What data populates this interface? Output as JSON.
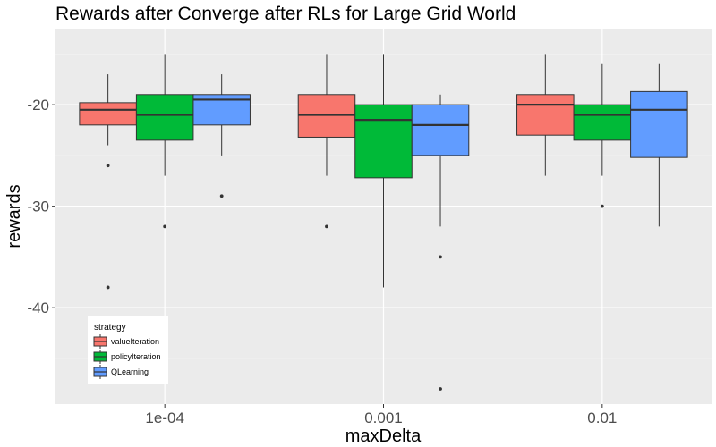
{
  "chart_data": {
    "type": "boxplot",
    "title": "Rewards after Converge after RLs for Large Grid World",
    "xlabel": "maxDelta",
    "ylabel": "rewards",
    "categories": [
      "1e-04",
      "0.001",
      "0.01"
    ],
    "ylim": [
      -49.5,
      -12.5
    ],
    "yticks": [
      -40,
      -30,
      -20
    ],
    "grid": true,
    "legend": {
      "title": "strategy",
      "position": "bottom-left",
      "entries": [
        "valueIteration",
        "policyIteration",
        "QLearning"
      ]
    },
    "series": [
      {
        "name": "valueIteration",
        "color": "#F8766D",
        "boxes": [
          {
            "category": "1e-04",
            "whisker_low": -24,
            "q1": -22,
            "median": -20.5,
            "q3": -19.8,
            "whisker_high": -17,
            "outliers": [
              -26,
              -38
            ]
          },
          {
            "category": "0.001",
            "whisker_low": -27,
            "q1": -23.2,
            "median": -21,
            "q3": -19,
            "whisker_high": -15,
            "outliers": [
              -32
            ]
          },
          {
            "category": "0.01",
            "whisker_low": -27,
            "q1": -23,
            "median": -20,
            "q3": -19,
            "whisker_high": -15,
            "outliers": []
          }
        ]
      },
      {
        "name": "policyIteration",
        "color": "#00BA38",
        "boxes": [
          {
            "category": "1e-04",
            "whisker_low": -27,
            "q1": -23.5,
            "median": -21,
            "q3": -19,
            "whisker_high": -15,
            "outliers": [
              -32
            ]
          },
          {
            "category": "0.001",
            "whisker_low": -38,
            "q1": -27.2,
            "median": -21.5,
            "q3": -20,
            "whisker_high": -15,
            "outliers": []
          },
          {
            "category": "0.01",
            "whisker_low": -27,
            "q1": -23.5,
            "median": -21,
            "q3": -20,
            "whisker_high": -16,
            "outliers": [
              -30
            ]
          }
        ]
      },
      {
        "name": "QLearning",
        "color": "#619CFF",
        "boxes": [
          {
            "category": "1e-04",
            "whisker_low": -25,
            "q1": -22,
            "median": -19.5,
            "q3": -19,
            "whisker_high": -17,
            "outliers": [
              -29
            ]
          },
          {
            "category": "0.001",
            "whisker_low": -32,
            "q1": -25,
            "median": -22,
            "q3": -20,
            "whisker_high": -19,
            "outliers": [
              -35,
              -48
            ]
          },
          {
            "category": "0.01",
            "whisker_low": -32,
            "q1": -25.2,
            "median": -20.5,
            "q3": -18.7,
            "whisker_high": -16,
            "outliers": []
          }
        ]
      }
    ]
  }
}
